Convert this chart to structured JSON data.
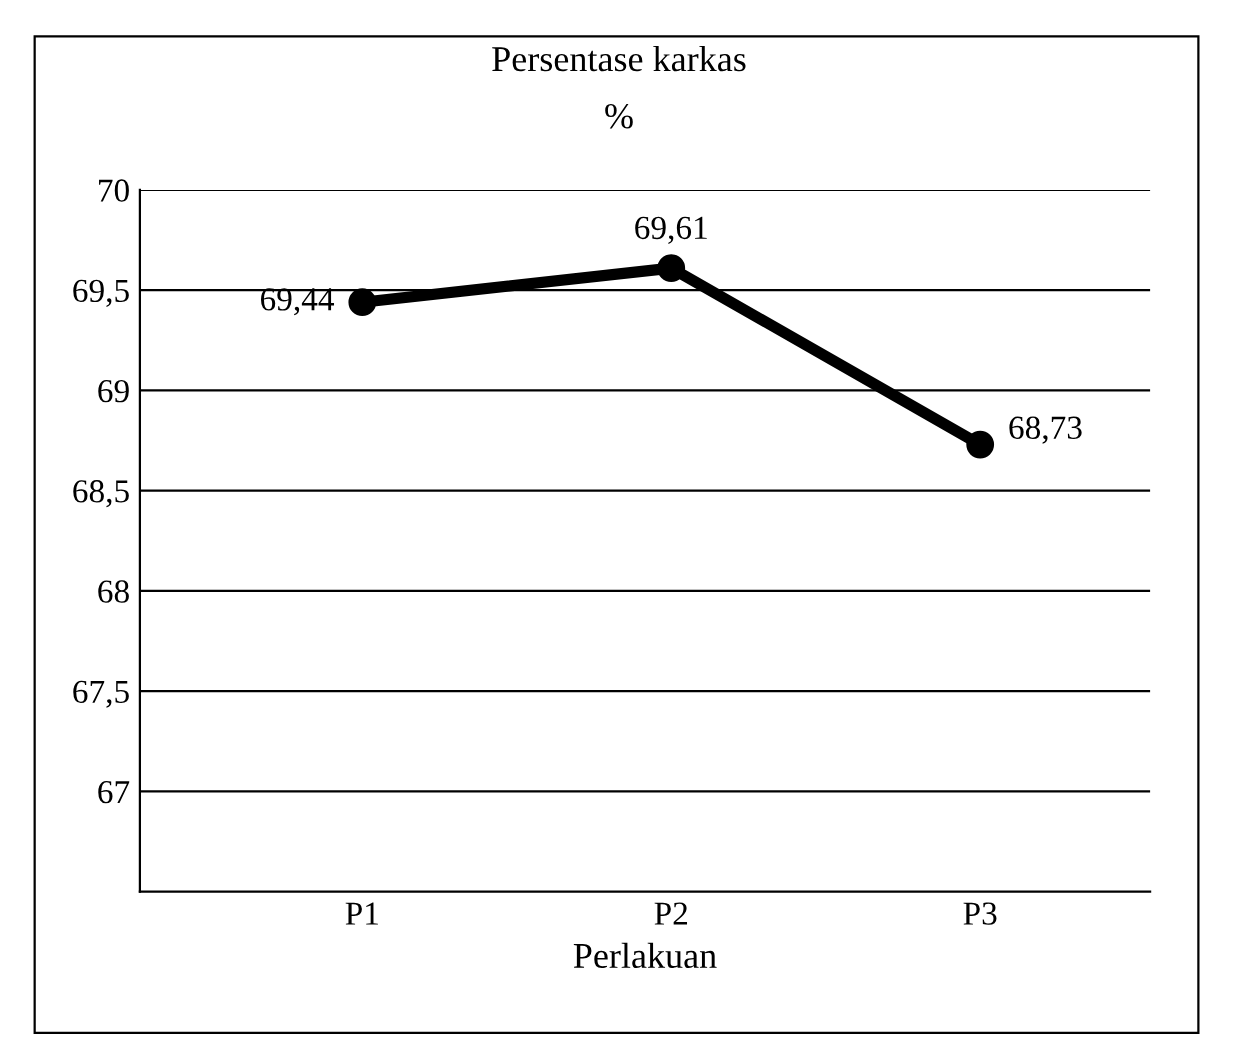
{
  "chart_data": {
    "type": "line",
    "title": "Persentase karkas",
    "ylabel": "%",
    "xlabel": "Perlakuan",
    "categories": [
      "P1",
      "P2",
      "P3"
    ],
    "series": [
      {
        "color": "#000000",
        "values": [
          69.44,
          69.61,
          68.73
        ],
        "value_labels": [
          "69,44",
          "69,61",
          "68,73"
        ]
      }
    ],
    "ylim": [
      66.5,
      70
    ],
    "yticks": [
      {
        "value": 67,
        "label": "67"
      },
      {
        "value": 67.5,
        "label": "67,5"
      },
      {
        "value": 68,
        "label": "68"
      },
      {
        "value": 68.5,
        "label": "68,5"
      },
      {
        "value": 69,
        "label": "69"
      },
      {
        "value": 69.5,
        "label": "69,5"
      },
      {
        "value": 70,
        "label": "70"
      }
    ],
    "grid": "y",
    "legend": false,
    "marker": "circle",
    "line_style": "solid"
  }
}
